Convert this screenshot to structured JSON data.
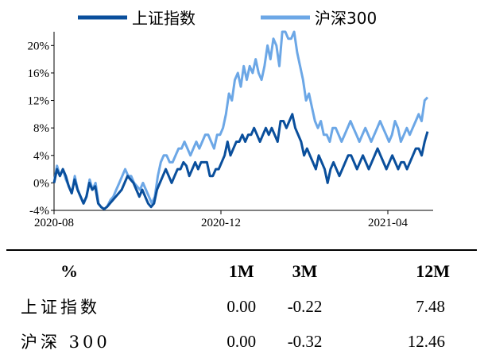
{
  "chart_data": {
    "type": "line",
    "x_ticks": [
      "2020-08",
      "2020-12",
      "2021-04"
    ],
    "y_ticks": [
      "20%",
      "16%",
      "12%",
      "8%",
      "4%",
      "0%",
      "-4%"
    ],
    "ylim": [
      -4,
      22
    ],
    "series": [
      {
        "name": "上证指数",
        "color": "#0a4f9c",
        "values": [
          0,
          2,
          1,
          2,
          1,
          -0.5,
          -1.5,
          0.5,
          -1,
          -2,
          -3,
          -2,
          0,
          -1,
          -0.5,
          -3,
          -3.5,
          -3.8,
          -3.5,
          -3,
          -2.5,
          -2,
          -1.5,
          -1,
          0,
          1,
          0.5,
          0,
          -1,
          -2,
          -1,
          -2,
          -3,
          -3.5,
          -3,
          -1,
          0,
          1,
          2,
          1,
          0,
          1,
          2,
          2,
          3,
          2.5,
          1,
          2,
          3,
          2,
          3,
          3,
          3,
          1,
          1,
          2,
          2,
          3,
          4,
          6,
          4,
          5,
          6,
          6,
          7,
          6,
          7,
          7,
          8,
          7,
          6,
          7,
          8,
          7,
          8,
          7,
          6,
          9,
          9,
          8,
          9,
          10,
          8,
          7,
          6,
          4,
          5,
          4,
          3,
          2,
          4,
          3,
          2,
          0,
          2,
          3,
          2,
          1,
          2,
          3,
          4,
          4,
          3,
          2,
          3,
          4,
          3,
          2,
          3,
          4,
          5,
          4,
          3,
          2,
          3,
          4,
          3,
          2,
          3,
          3,
          2,
          3,
          4,
          5,
          5,
          4,
          6,
          7.48
        ]
      },
      {
        "name": "沪深300",
        "color": "#6ca7e6",
        "values": [
          0,
          2.5,
          1,
          2,
          0.5,
          -0.5,
          -1.5,
          1,
          -1,
          -2,
          -3,
          -2,
          0.5,
          -1,
          0,
          -3,
          -3.6,
          -3.8,
          -3.4,
          -2.5,
          -2,
          -1,
          0,
          1,
          2,
          1,
          1,
          0,
          -0.5,
          -1,
          0,
          -1,
          -2,
          -3,
          -2,
          1,
          3,
          4,
          4,
          3,
          3,
          4,
          5,
          5,
          6,
          5,
          4,
          5,
          6,
          5,
          6,
          7,
          7,
          6,
          5,
          7,
          7,
          8,
          10,
          13,
          12,
          15,
          16,
          14,
          17,
          15,
          17,
          16,
          18,
          16,
          15,
          17,
          20,
          18,
          21,
          20,
          17,
          22,
          22,
          21,
          21,
          22,
          19,
          17,
          15,
          12,
          13,
          11,
          9,
          8,
          9,
          7,
          7,
          6,
          8,
          8,
          7,
          6,
          7,
          8,
          9,
          8,
          7,
          6,
          7,
          8,
          7,
          6,
          7,
          8,
          9,
          8,
          7,
          6,
          7,
          9,
          8,
          6,
          7,
          8,
          7,
          8,
          9,
          10,
          9,
          12,
          12.46
        ]
      }
    ]
  },
  "table": {
    "header": [
      "%",
      "1M",
      "3M",
      "12M"
    ],
    "rows": [
      [
        "上证指数",
        "0.00",
        "-0.22",
        "7.48"
      ],
      [
        "沪深 300",
        "0.00",
        "-0.32",
        "12.46"
      ]
    ]
  }
}
